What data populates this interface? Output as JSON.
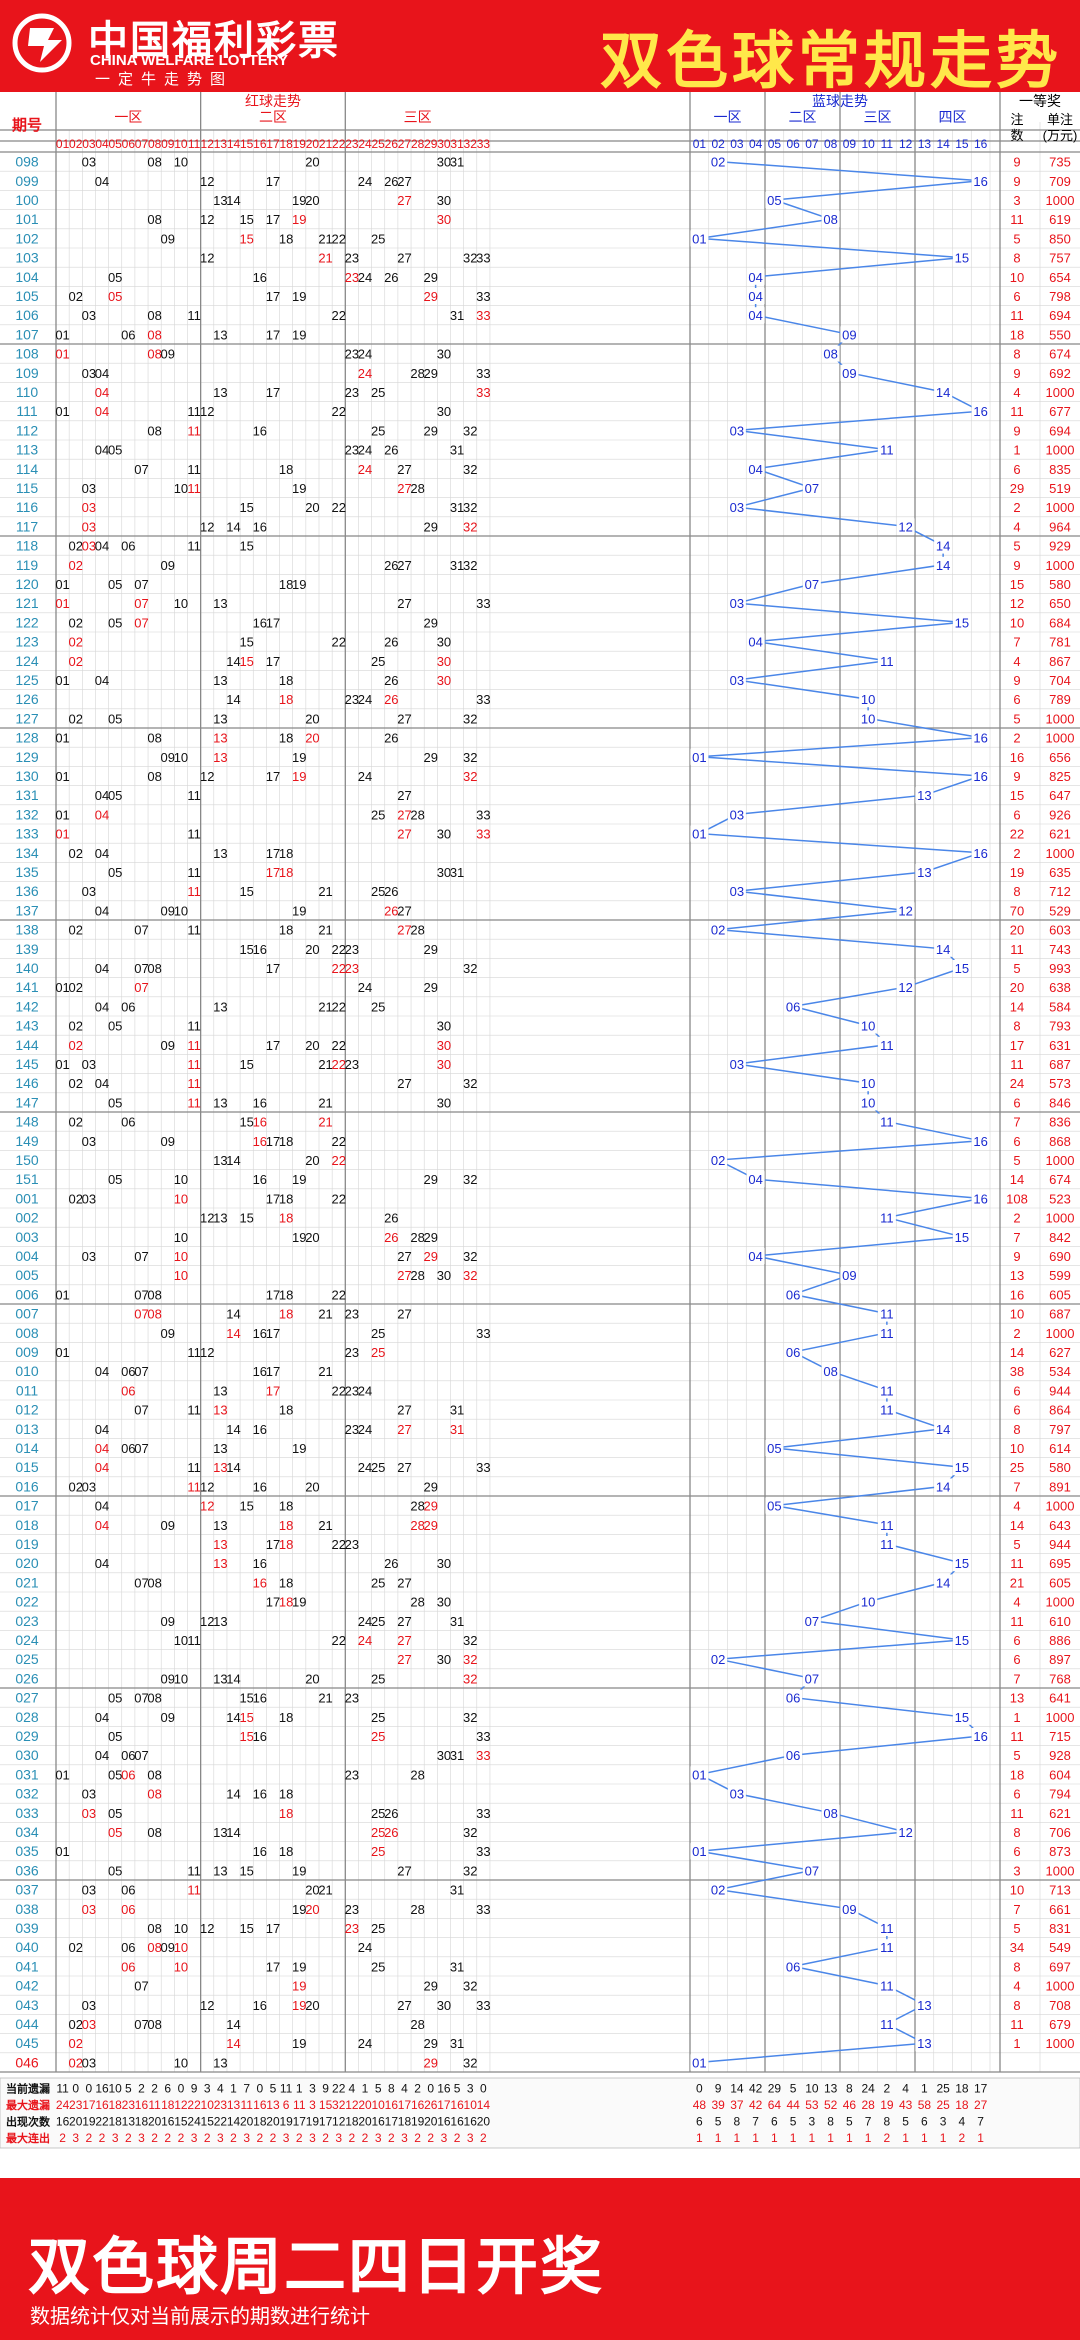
{
  "header": {
    "logo_cn": "中国福利彩票",
    "logo_en": "CHINA WELFARE LOTTERY",
    "slogan": "一定牛走势图",
    "title": "双色球常规走势"
  },
  "columns": {
    "period": "期号",
    "red_group": "红球走势",
    "red_zones": [
      "一区",
      "二区",
      "三区"
    ],
    "blue_group": "蓝球走势",
    "blue_zones": [
      "一区",
      "二区",
      "三区",
      "四区"
    ],
    "prize_group": "一等奖",
    "prize_count": "注数",
    "prize_amount": "单注(万元)"
  },
  "rows": [
    [
      "098",
      "03 08 10",
      "20",
      "30 31",
      "02",
      "9",
      "735"
    ],
    [
      "099",
      "04",
      "12 17",
      "24 26 27",
      "16",
      "9",
      "709"
    ],
    [
      "100",
      "",
      "13 14 19 20",
      "27 30",
      "05",
      "3",
      "1000"
    ],
    [
      "101",
      "08",
      "12 15 17 19",
      "30",
      "08",
      "11",
      "619"
    ],
    [
      "102",
      "09",
      "15 18 21 22",
      "25",
      "01",
      "5",
      "850"
    ],
    [
      "103",
      "",
      "12 21",
      "23 27 32 33",
      "15",
      "8",
      "757"
    ],
    [
      "104",
      "05",
      "16",
      "23 24 26 29",
      "04",
      "10",
      "654"
    ],
    [
      "105",
      "02 05",
      "17 19",
      "29 33",
      "04",
      "6",
      "798"
    ],
    [
      "106",
      "03 08 11",
      "22",
      "31 33",
      "04",
      "11",
      "694"
    ],
    [
      "107",
      "01 06 08",
      "13 17 19",
      "",
      "09",
      "18",
      "550"
    ],
    [
      "108",
      "01 08 09",
      "",
      "23 24 30",
      "08",
      "8",
      "674"
    ],
    [
      "109",
      "03 04",
      "",
      "24 28 29 33",
      "09",
      "9",
      "692"
    ],
    [
      "110",
      "04",
      "13 17",
      "23 25 33",
      "14",
      "4",
      "1000"
    ],
    [
      "111",
      "01 04 11",
      "12 22",
      "30",
      "16",
      "11",
      "677"
    ],
    [
      "112",
      "08 11",
      "16",
      "25 29 32",
      "03",
      "9",
      "694"
    ],
    [
      "113",
      "04 05",
      "",
      "23 24 26 31",
      "11",
      "1",
      "1000"
    ],
    [
      "114",
      "07 11",
      "18",
      "24 27 32",
      "04",
      "6",
      "835"
    ],
    [
      "115",
      "03 10 11",
      "19",
      "27 28",
      "07",
      "29",
      "519"
    ],
    [
      "116",
      "03",
      "15 20 22",
      "31 32",
      "03",
      "2",
      "1000"
    ],
    [
      "117",
      "03",
      "12 14 16",
      "29 32",
      "12",
      "4",
      "964"
    ],
    [
      "118",
      "02 03 04 06 11",
      "15",
      "",
      "14",
      "5",
      "929"
    ],
    [
      "119",
      "02 09",
      "",
      "26 27 31 32",
      "14",
      "9",
      "1000"
    ],
    [
      "120",
      "01 05 07",
      "18 19",
      "",
      "07",
      "15",
      "580"
    ],
    [
      "121",
      "01 07 10",
      "13",
      "27 33",
      "03",
      "12",
      "650"
    ],
    [
      "122",
      "02 05 07",
      "16 17",
      "29",
      "15",
      "10",
      "684"
    ],
    [
      "123",
      "02",
      "15 22",
      "26 30",
      "04",
      "7",
      "781"
    ],
    [
      "124",
      "02",
      "14 15 17",
      "25 30",
      "11",
      "4",
      "867"
    ],
    [
      "125",
      "01 04",
      "13 18",
      "26 30",
      "03",
      "9",
      "704"
    ],
    [
      "126",
      "",
      "14 18",
      "23 24 26 33",
      "10",
      "6",
      "789"
    ],
    [
      "127",
      "02 05",
      "13 20",
      "27 32",
      "10",
      "5",
      "1000"
    ],
    [
      "128",
      "01 08",
      "13 18 20",
      "26",
      "16",
      "2",
      "1000"
    ],
    [
      "129",
      "09 10",
      "13 19",
      "29 32",
      "01",
      "16",
      "656"
    ],
    [
      "130",
      "01 08",
      "12 17 19",
      "24 32",
      "16",
      "9",
      "825"
    ],
    [
      "131",
      "04 05 11",
      "",
      "27",
      "13",
      "15",
      "647"
    ],
    [
      "132",
      "01 04",
      "",
      "25 27 28 33",
      "03",
      "6",
      "926"
    ],
    [
      "133",
      "01 11",
      "",
      "27 30 33",
      "01",
      "22",
      "621"
    ],
    [
      "134",
      "02 04",
      "13 17 18",
      "",
      "16",
      "2",
      "1000"
    ],
    [
      "135",
      "05 11",
      "17 18",
      "30 31",
      "13",
      "19",
      "635"
    ],
    [
      "136",
      "03 11",
      "15 21",
      "25 26",
      "03",
      "8",
      "712"
    ],
    [
      "137",
      "04 09 10",
      "19",
      "26 27",
      "12",
      "70",
      "529"
    ],
    [
      "138",
      "02 07 11",
      "18 21",
      "27 28",
      "02",
      "20",
      "603"
    ],
    [
      "139",
      "",
      "15 16 20 22",
      "23 29",
      "14",
      "11",
      "743"
    ],
    [
      "140",
      "04 07 08",
      "17 22",
      "23 32",
      "15",
      "5",
      "993"
    ],
    [
      "141",
      "01 02 07",
      "",
      "24 29",
      "12",
      "20",
      "638"
    ],
    [
      "142",
      "04 06",
      "13 21 22",
      "25",
      "06",
      "14",
      "584"
    ],
    [
      "143",
      "02 05 11",
      "",
      "30",
      "10",
      "8",
      "793"
    ],
    [
      "144",
      "02 09 11",
      "17 20 22",
      "30",
      "11",
      "17",
      "631"
    ],
    [
      "145",
      "01 03 11",
      "15 21 22",
      "23 30",
      "03",
      "11",
      "687"
    ],
    [
      "146",
      "02 04 11",
      "",
      "27 32",
      "10",
      "24",
      "573"
    ],
    [
      "147",
      "05 11",
      "13 16 21",
      "30",
      "10",
      "6",
      "846"
    ],
    [
      "148",
      "02 06",
      "15 16 21",
      "",
      "11",
      "7",
      "836"
    ],
    [
      "149",
      "03 09",
      "16 17 18 22",
      "",
      "16",
      "6",
      "868"
    ],
    [
      "150",
      "",
      "13 14 20 22",
      "",
      "02",
      "5",
      "1000"
    ],
    [
      "151",
      "05 10",
      "16 19",
      "29 32",
      "04",
      "14",
      "674"
    ],
    [
      "001",
      "02 03 10",
      "17 18 22",
      "",
      "16",
      "108",
      "523"
    ],
    [
      "002",
      "",
      "12 13 15 18",
      "26",
      "11",
      "2",
      "1000"
    ],
    [
      "003",
      "10",
      "19 20",
      "26 28 29",
      "15",
      "7",
      "842"
    ],
    [
      "004",
      "03 07 10",
      "",
      "27 29 32",
      "04",
      "9",
      "690"
    ],
    [
      "005",
      "10",
      "",
      "27 28 30 32",
      "09",
      "13",
      "599"
    ],
    [
      "006",
      "01 07 08",
      "17 18 22",
      "",
      "06",
      "16",
      "605"
    ],
    [
      "007",
      "07 08",
      "14 18 21",
      "23 27",
      "11",
      "10",
      "687"
    ],
    [
      "008",
      "09",
      "14 16 17",
      "25 33",
      "11",
      "2",
      "1000"
    ],
    [
      "009",
      "01 11",
      "12",
      "23 25",
      "06",
      "14",
      "627"
    ],
    [
      "010",
      "04 06 07",
      "16 17 21",
      "",
      "08",
      "38",
      "534"
    ],
    [
      "011",
      "06",
      "13 17 22",
      "23 24",
      "11",
      "6",
      "944"
    ],
    [
      "012",
      "07 11",
      "13 18",
      "27 31",
      "11",
      "6",
      "864"
    ],
    [
      "013",
      "04",
      "14 16",
      "23 24 27 31",
      "14",
      "8",
      "797"
    ],
    [
      "014",
      "04 06 07",
      "13 19",
      "",
      "05",
      "10",
      "614"
    ],
    [
      "015",
      "04 11",
      "13 14",
      "24 25 27 33",
      "15",
      "25",
      "580"
    ],
    [
      "016",
      "02 03 11",
      "12 16 20",
      "29",
      "14",
      "7",
      "891"
    ],
    [
      "017",
      "04",
      "12 15 18",
      "28 29",
      "05",
      "4",
      "1000"
    ],
    [
      "018",
      "04 09",
      "13 18 21",
      "28 29",
      "11",
      "14",
      "643"
    ],
    [
      "019",
      "",
      "13 17 18 22",
      "23",
      "11",
      "5",
      "944"
    ],
    [
      "020",
      "04",
      "13 16",
      "26 30",
      "15",
      "11",
      "695"
    ],
    [
      "021",
      "07 08",
      "16 18",
      "25 27",
      "14",
      "21",
      "605"
    ],
    [
      "022",
      "",
      "17 18 19",
      "28 30",
      "10",
      "4",
      "1000"
    ],
    [
      "023",
      "09",
      "12 13",
      "24 25 27 31",
      "07",
      "11",
      "610"
    ],
    [
      "024",
      "10 11",
      "22",
      "24 27 32",
      "15",
      "6",
      "886"
    ],
    [
      "025",
      "",
      "",
      "27 30 32",
      "02",
      "6",
      "897"
    ],
    [
      "026",
      "09 10",
      "13 14 20",
      "25 32",
      "07",
      "7",
      "768"
    ],
    [
      "027",
      "05 07 08",
      "15 16 21",
      "23",
      "06",
      "13",
      "641"
    ],
    [
      "028",
      "04 09",
      "14 15 18",
      "25 32",
      "15",
      "1",
      "1000"
    ],
    [
      "029",
      "05",
      "15 16",
      "25 33",
      "16",
      "11",
      "715"
    ],
    [
      "030",
      "04 06 07",
      "",
      "30 31 33",
      "06",
      "5",
      "928"
    ],
    [
      "031",
      "01 05 06 08",
      "",
      "23 28",
      "01",
      "18",
      "604"
    ],
    [
      "032",
      "03 08",
      "14 16 18",
      "",
      "03",
      "6",
      "794"
    ],
    [
      "033",
      "03 05",
      "18",
      "25 26 33",
      "08",
      "11",
      "621"
    ],
    [
      "034",
      "05 08",
      "13 14",
      "25 26 32",
      "12",
      "8",
      "706"
    ],
    [
      "035",
      "01",
      "16 18",
      "25 33",
      "01",
      "6",
      "873"
    ],
    [
      "036",
      "05 11",
      "13 15 19",
      "27 32",
      "07",
      "3",
      "1000"
    ],
    [
      "037",
      "03 06 11",
      "20 21",
      "31",
      "02",
      "10",
      "713"
    ],
    [
      "038",
      "03 06",
      "19 20",
      "23 28 33",
      "09",
      "7",
      "661"
    ],
    [
      "039",
      "08 10",
      "12 15 17",
      "23 25",
      "11",
      "5",
      "831"
    ],
    [
      "040",
      "02 06 08 09 10",
      "",
      "24",
      "11",
      "34",
      "549"
    ],
    [
      "041",
      "06 10",
      "17 19",
      "25 31",
      "06",
      "8",
      "697"
    ],
    [
      "042",
      "07",
      "19",
      "29 32",
      "11",
      "4",
      "1000"
    ],
    [
      "043",
      "03",
      "12 16 19 20",
      "27 30 33",
      "13",
      "8",
      "708"
    ],
    [
      "044",
      "02 03 07 08",
      "14",
      "28",
      "11",
      "11",
      "679"
    ],
    [
      "045",
      "02",
      "14 19",
      "24 29 31",
      "13",
      "1",
      "1000"
    ],
    [
      "046",
      "02 03 10",
      "13",
      "29 32",
      "01",
      "",
      ""
    ]
  ],
  "stats": {
    "labels": [
      "当前遗漏",
      "最大遗漏",
      "出现次数",
      "最大连出"
    ],
    "red": [
      [
        "11",
        "0",
        "0",
        "16",
        "10",
        "5",
        "2",
        "2",
        "6",
        "0",
        "9",
        "3",
        "4",
        "1",
        "7",
        "0",
        "5",
        "11",
        "1",
        "3",
        "9",
        "22",
        "4",
        "1",
        "5",
        "8",
        "4",
        "2",
        "0",
        "16",
        "5",
        "3",
        "0"
      ],
      [
        "24",
        "23",
        "17",
        "16",
        "18",
        "23",
        "16",
        "11",
        "18",
        "12",
        "22",
        "10",
        "23",
        "13",
        "11",
        "16",
        "13",
        "6",
        "11",
        "3",
        "15",
        "32",
        "12",
        "20",
        "10",
        "16",
        "17",
        "16",
        "26",
        "17",
        "16",
        "10",
        "14"
      ],
      [
        "16",
        "20",
        "19",
        "22",
        "18",
        "13",
        "18",
        "20",
        "16",
        "15",
        "24",
        "15",
        "22",
        "14",
        "20",
        "18",
        "20",
        "19",
        "17",
        "19",
        "17",
        "12",
        "18",
        "20",
        "16",
        "17",
        "18",
        "19",
        "20",
        "16",
        "16",
        "16",
        "20"
      ],
      [
        "2",
        "3",
        "2",
        "2",
        "3",
        "2",
        "3",
        "2",
        "2",
        "2",
        "3",
        "2",
        "3",
        "2",
        "3",
        "2",
        "2",
        "3",
        "2",
        "3",
        "2",
        "3",
        "2",
        "2",
        "3",
        "2",
        "3",
        "2",
        "2",
        "3",
        "2",
        "3",
        "2"
      ]
    ],
    "blue": [
      [
        "0",
        "9",
        "14",
        "42",
        "29",
        "5",
        "10",
        "13",
        "8",
        "24",
        "2",
        "4",
        "1",
        "25",
        "18",
        "17"
      ],
      [
        "48",
        "39",
        "37",
        "42",
        "64",
        "44",
        "53",
        "52",
        "46",
        "28",
        "19",
        "43",
        "58",
        "25",
        "18",
        "27"
      ],
      [
        "6",
        "5",
        "8",
        "7",
        "6",
        "5",
        "3",
        "8",
        "5",
        "7",
        "8",
        "5",
        "6",
        "3",
        "4",
        "7"
      ],
      [
        "1",
        "1",
        "1",
        "1",
        "1",
        "1",
        "1",
        "1",
        "1",
        "1",
        "2",
        "1",
        "1",
        "1",
        "2",
        "1"
      ]
    ]
  },
  "footer": {
    "title": "双色球周二四日开奖",
    "note": "数据统计仅对当前展示的期数进行统计"
  },
  "colors": {
    "brand_red": "#e8141b",
    "title_yellow": "#ffe84a",
    "period_blue": "#2a8fb5",
    "blue_ball": "#1a2ad0",
    "blue_line": "#4a86e8",
    "repeat_red": "#e8141b"
  }
}
